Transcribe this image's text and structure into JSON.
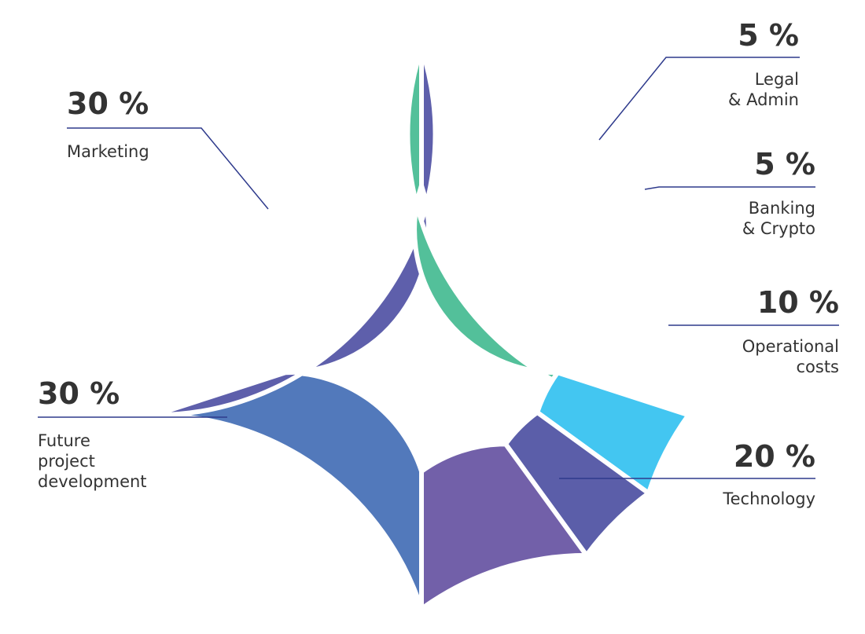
{
  "chart_data": {
    "type": "pie",
    "donut": true,
    "slices": [
      {
        "label_lines": [
          "Technology"
        ],
        "percent_label": "20 %",
        "value": 20,
        "color": "#5279bb"
      },
      {
        "label_lines": [
          "Future",
          "project",
          "development"
        ],
        "percent_label": "30 %",
        "value": 30,
        "color": "#5e5fab"
      },
      {
        "label_lines": [
          "Marketing"
        ],
        "percent_label": "30 %",
        "value": 30,
        "color": "#53c09a"
      },
      {
        "label_lines": [
          "Legal",
          "& Admin"
        ],
        "percent_label": "5 %",
        "value": 5,
        "color": "#43c6f1"
      },
      {
        "label_lines": [
          "Banking",
          "& Crypto"
        ],
        "percent_label": "5 %",
        "value": 5,
        "color": "#5b5ea9"
      },
      {
        "label_lines": [
          "Operational",
          "costs"
        ],
        "percent_label": "10 %",
        "value": 10,
        "color": "#7260a9"
      }
    ],
    "leader_line_color": "#2e3a8c",
    "text_color": "#333333"
  }
}
